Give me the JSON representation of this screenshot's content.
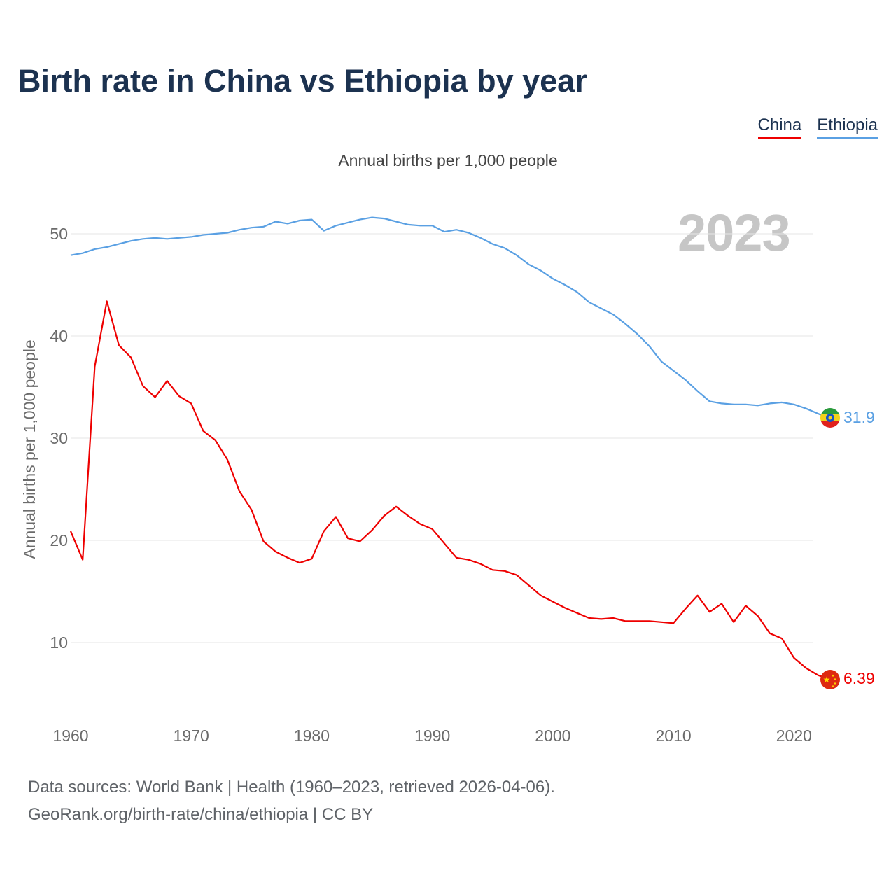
{
  "title": "Birth rate in China vs Ethiopia by year",
  "legend": {
    "china": "China",
    "ethiopia": "Ethiopia"
  },
  "colors": {
    "china": "#ee0000",
    "ethiopia": "#5aa0e3",
    "grid": "#e6e6e6",
    "axis_text": "#6b6b6b"
  },
  "chart_data": {
    "type": "line",
    "title": "Birth rate in China vs Ethiopia by year",
    "subtitle": "Annual births per 1,000 people",
    "xlabel": "",
    "ylabel": "Annual births per 1,000 people",
    "xlim": [
      1960,
      2023
    ],
    "ylim": [
      3,
      54
    ],
    "yticks": [
      10,
      20,
      30,
      40,
      50
    ],
    "xticks": [
      1960,
      1970,
      1980,
      1990,
      2000,
      2010,
      2020
    ],
    "current_year": "2023",
    "x": [
      1960,
      1961,
      1962,
      1963,
      1964,
      1965,
      1966,
      1967,
      1968,
      1969,
      1970,
      1971,
      1972,
      1973,
      1974,
      1975,
      1976,
      1977,
      1978,
      1979,
      1980,
      1981,
      1982,
      1983,
      1984,
      1985,
      1986,
      1987,
      1988,
      1989,
      1990,
      1991,
      1992,
      1993,
      1994,
      1995,
      1996,
      1997,
      1998,
      1999,
      2000,
      2001,
      2002,
      2003,
      2004,
      2005,
      2006,
      2007,
      2008,
      2009,
      2010,
      2011,
      2012,
      2013,
      2014,
      2015,
      2016,
      2017,
      2018,
      2019,
      2020,
      2021,
      2022,
      2023
    ],
    "series": [
      {
        "name": "China",
        "color_key": "china",
        "end_label": "6.39",
        "values": [
          20.9,
          18.1,
          37.0,
          43.4,
          39.1,
          37.9,
          35.1,
          34.0,
          35.6,
          34.1,
          33.4,
          30.7,
          29.8,
          27.9,
          24.8,
          23.0,
          19.9,
          18.9,
          18.3,
          17.8,
          18.2,
          20.9,
          22.3,
          20.2,
          19.9,
          21.0,
          22.4,
          23.3,
          22.4,
          21.6,
          21.1,
          19.7,
          18.3,
          18.1,
          17.7,
          17.1,
          17.0,
          16.6,
          15.6,
          14.6,
          14.0,
          13.4,
          12.9,
          12.4,
          12.3,
          12.4,
          12.1,
          12.1,
          12.1,
          12.0,
          11.9,
          13.3,
          14.6,
          13.0,
          13.8,
          12.0,
          13.6,
          12.6,
          10.9,
          10.4,
          8.5,
          7.5,
          6.8,
          6.39
        ]
      },
      {
        "name": "Ethiopia",
        "color_key": "ethiopia",
        "end_label": "31.9",
        "values": [
          47.9,
          48.1,
          48.5,
          48.7,
          49.0,
          49.3,
          49.5,
          49.6,
          49.5,
          49.6,
          49.7,
          49.9,
          50.0,
          50.1,
          50.4,
          50.6,
          50.7,
          51.2,
          51.0,
          51.3,
          51.4,
          50.3,
          50.8,
          51.1,
          51.4,
          51.6,
          51.5,
          51.2,
          50.9,
          50.8,
          50.8,
          50.2,
          50.4,
          50.1,
          49.6,
          49.0,
          48.6,
          47.9,
          47.0,
          46.4,
          45.6,
          45.0,
          44.3,
          43.3,
          42.7,
          42.1,
          41.2,
          40.2,
          39.0,
          37.5,
          36.6,
          35.7,
          34.6,
          33.6,
          33.4,
          33.3,
          33.3,
          33.2,
          33.4,
          33.5,
          33.3,
          32.9,
          32.4,
          31.9
        ]
      }
    ]
  },
  "footer": {
    "line1": "Data sources: World Bank | Health (1960–2023, retrieved 2026-04-06).",
    "line2": "GeoRank.org/birth-rate/china/ethiopia | CC BY"
  }
}
